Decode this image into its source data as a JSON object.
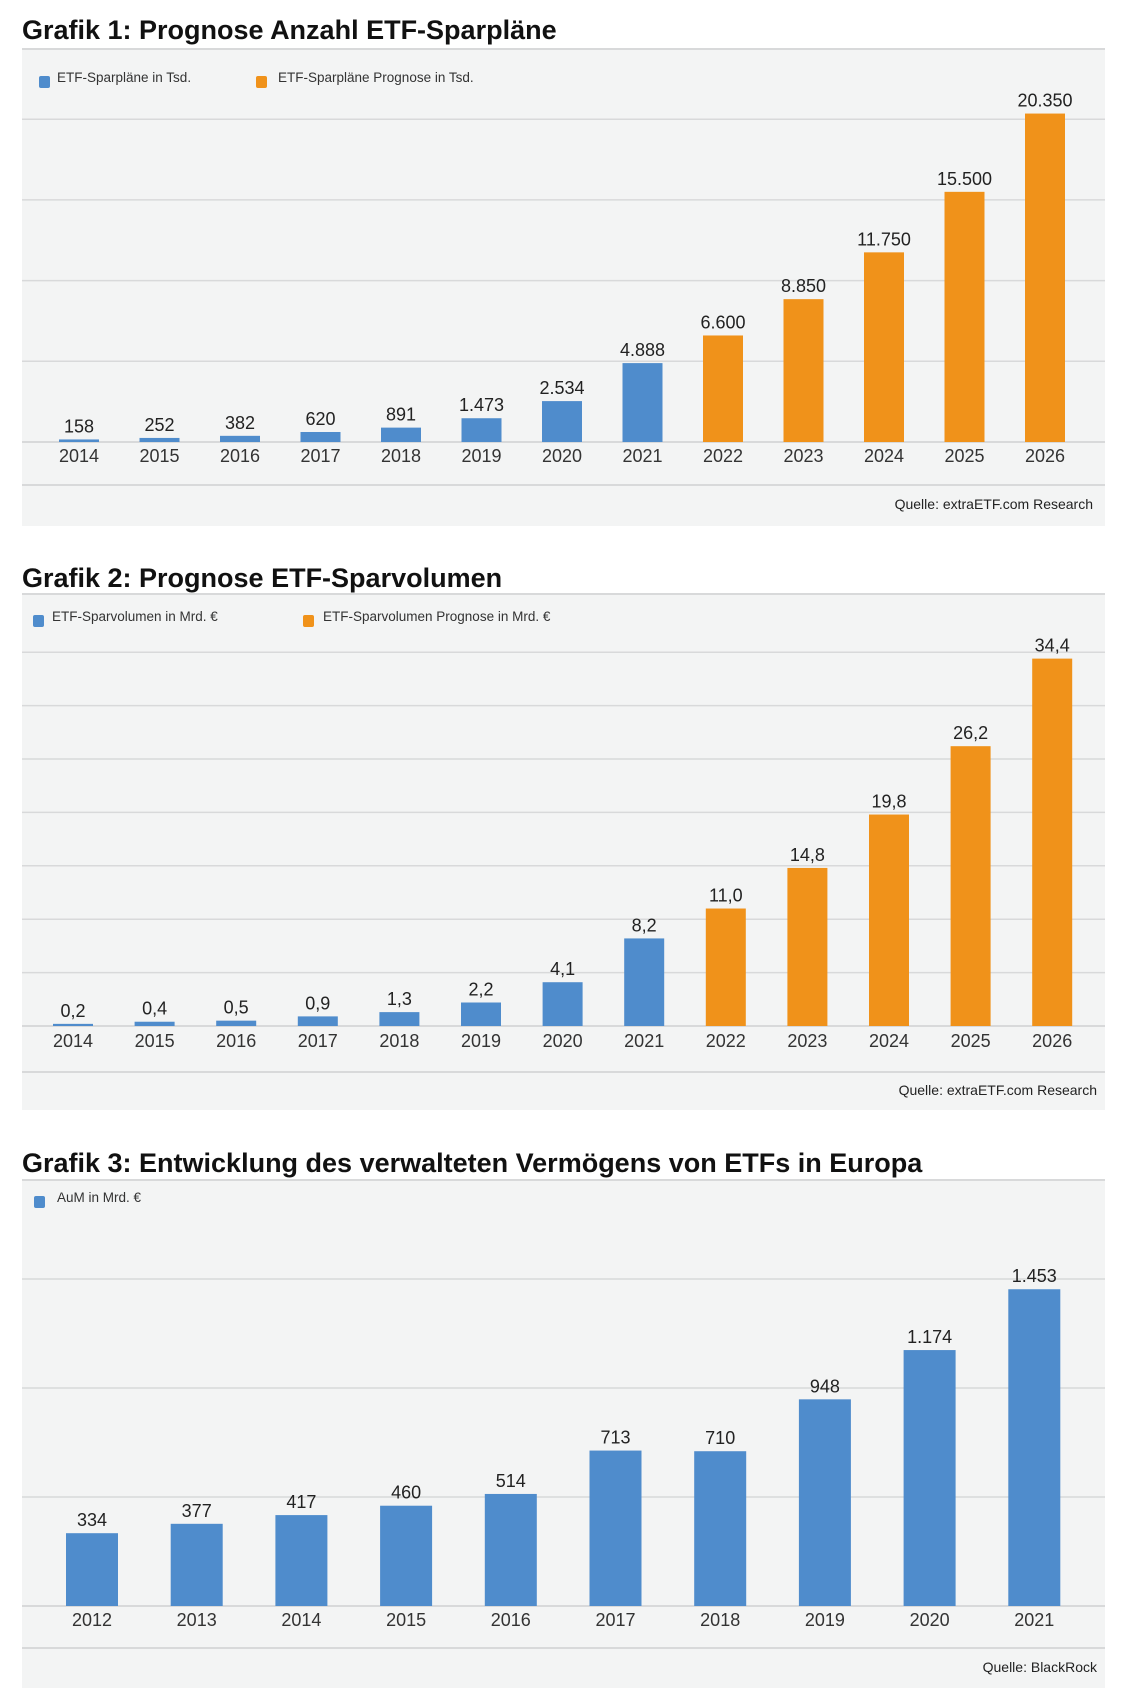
{
  "colors": {
    "actual": "#4f8ccc",
    "forecast": "#f0921a",
    "panel": "#f3f4f4",
    "grid": "#d8d9da"
  },
  "chart_data": [
    {
      "type": "bar",
      "title": "Grafik 1: Prognose Anzahl ETF-Sparpläne",
      "categories": [
        "2014",
        "2015",
        "2016",
        "2017",
        "2018",
        "2019",
        "2020",
        "2021",
        "2022",
        "2023",
        "2024",
        "2025",
        "2026"
      ],
      "series": [
        {
          "name": "ETF-Sparpläne in Tsd.",
          "values": [
            158,
            252,
            382,
            620,
            891,
            1473,
            2534,
            4888,
            null,
            null,
            null,
            null,
            null
          ]
        },
        {
          "name": "ETF-Sparpläne Prognose in Tsd.",
          "values": [
            null,
            null,
            null,
            null,
            null,
            null,
            null,
            null,
            6600,
            8850,
            11750,
            15500,
            20350
          ]
        }
      ],
      "data_labels": [
        "158",
        "252",
        "382",
        "620",
        "891",
        "1.473",
        "2.534",
        "4.888",
        "6.600",
        "8.850",
        "11.750",
        "15.500",
        "20.350"
      ],
      "ylim": [
        0,
        25000
      ],
      "grid": true,
      "gridlines": [
        5000,
        10000,
        15000,
        20000
      ],
      "legend": "top-left",
      "source": "Quelle: extraETF.com Research"
    },
    {
      "type": "bar",
      "title": "Grafik 2: Prognose ETF-Sparvolumen",
      "categories": [
        "2014",
        "2015",
        "2016",
        "2017",
        "2018",
        "2019",
        "2020",
        "2021",
        "2022",
        "2023",
        "2024",
        "2025",
        "2026"
      ],
      "series": [
        {
          "name": "ETF-Sparvolumen in Mrd. €",
          "values": [
            0.2,
            0.4,
            0.5,
            0.9,
            1.3,
            2.2,
            4.1,
            8.2,
            null,
            null,
            null,
            null,
            null
          ]
        },
        {
          "name": "ETF-Sparvolumen Prognose in Mrd. €",
          "values": [
            null,
            null,
            null,
            null,
            null,
            null,
            null,
            null,
            11.0,
            14.8,
            19.8,
            26.2,
            34.4
          ]
        }
      ],
      "data_labels": [
        "0,2",
        "0,4",
        "0,5",
        "0,9",
        "1,3",
        "2,2",
        "4,1",
        "8,2",
        "11,0",
        "14,8",
        "19,8",
        "26,2",
        "34,4"
      ],
      "ylim": [
        0,
        35
      ],
      "grid": true,
      "gridlines": [
        5,
        10,
        15,
        20,
        25,
        30,
        35
      ],
      "legend": "top-left",
      "source": "Quelle: extraETF.com Research"
    },
    {
      "type": "bar",
      "title": "Grafik 3: Entwicklung des verwalteten Vermögens von ETFs in Europa",
      "categories": [
        "2012",
        "2013",
        "2014",
        "2015",
        "2016",
        "2017",
        "2018",
        "2019",
        "2020",
        "2021"
      ],
      "series": [
        {
          "name": "AuM in Mrd. €",
          "values": [
            334,
            377,
            417,
            460,
            514,
            713,
            710,
            948,
            1174,
            1453
          ]
        }
      ],
      "data_labels": [
        "334",
        "377",
        "417",
        "460",
        "514",
        "713",
        "710",
        "948",
        "1.174",
        "1.453"
      ],
      "ylim": [
        0,
        1500
      ],
      "grid": true,
      "gridlines": [
        500,
        1000,
        1500
      ],
      "legend": "top-left",
      "source": "Quelle: BlackRock"
    }
  ]
}
